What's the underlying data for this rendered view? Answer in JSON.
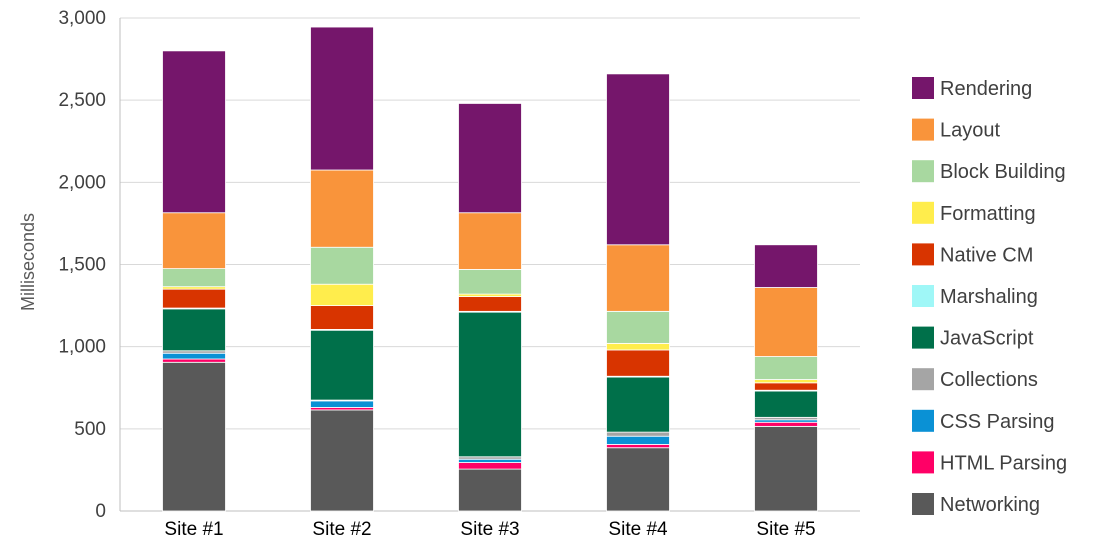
{
  "chart_data": {
    "type": "bar",
    "stacked": true,
    "ylabel": "Milliseconds",
    "ylim": [
      0,
      3000
    ],
    "yticks": [
      0,
      500,
      1000,
      1500,
      2000,
      2500,
      3000
    ],
    "ytick_labels": [
      "0",
      "500",
      "1,000",
      "1,500",
      "2,000",
      "2,500",
      "3,000"
    ],
    "categories": [
      "Site #1",
      "Site #2",
      "Site #3",
      "Site #4",
      "Site #5"
    ],
    "grid": true,
    "legend_position": "right",
    "series": [
      {
        "name": "Networking",
        "color": "#595959",
        "values": [
          905,
          615,
          255,
          385,
          515
        ]
      },
      {
        "name": "HTML Parsing",
        "color": "#ff0066",
        "values": [
          20,
          15,
          40,
          20,
          25
        ]
      },
      {
        "name": "CSS Parsing",
        "color": "#0a91d5",
        "values": [
          35,
          40,
          20,
          50,
          15
        ]
      },
      {
        "name": "Collections",
        "color": "#a5a5a5",
        "values": [
          15,
          5,
          15,
          25,
          15
        ]
      },
      {
        "name": "JavaScript",
        "color": "#00704a",
        "values": [
          255,
          425,
          880,
          335,
          160
        ]
      },
      {
        "name": "Marshaling",
        "color": "#9ff7f7",
        "values": [
          5,
          5,
          5,
          5,
          5
        ]
      },
      {
        "name": "Native CM",
        "color": "#d83400",
        "values": [
          115,
          145,
          90,
          160,
          45
        ]
      },
      {
        "name": "Formatting",
        "color": "#ffed4c",
        "values": [
          15,
          130,
          15,
          40,
          20
        ]
      },
      {
        "name": "Block Building",
        "color": "#a8d8a0",
        "values": [
          110,
          225,
          150,
          195,
          140
        ]
      },
      {
        "name": "Layout",
        "color": "#f9943b",
        "values": [
          340,
          470,
          345,
          405,
          420
        ]
      },
      {
        "name": "Rendering",
        "color": "#75166b",
        "values": [
          985,
          870,
          665,
          1040,
          260
        ]
      }
    ]
  }
}
